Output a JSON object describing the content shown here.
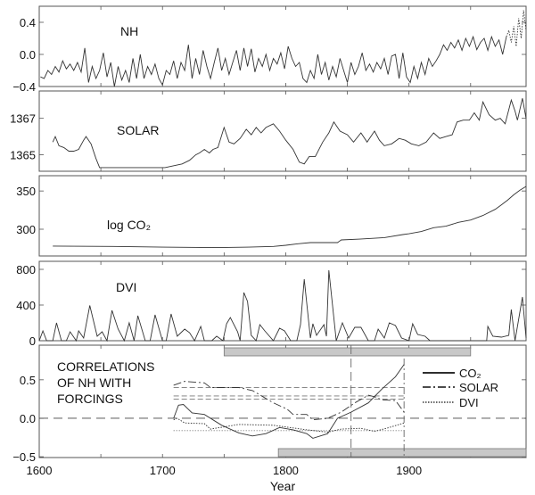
{
  "chart_data": [
    {
      "type": "line",
      "panel_label": "NH",
      "ylim": [
        -0.4,
        0.6
      ],
      "yticks": [
        0.4,
        0.0,
        -0.4
      ],
      "ytick_labels": [
        "0.4",
        "0.0",
        "−0.4"
      ],
      "series": [
        {
          "name": "NH",
          "style": "solid",
          "x_start": 1601,
          "x_step": 3,
          "values": [
            -0.28,
            -0.3,
            -0.2,
            -0.25,
            -0.15,
            -0.22,
            -0.08,
            -0.18,
            -0.12,
            -0.2,
            -0.1,
            -0.22,
            0.08,
            -0.35,
            -0.15,
            -0.3,
            -0.2,
            0.02,
            -0.28,
            -0.1,
            -0.4,
            -0.15,
            -0.32,
            -0.2,
            -0.35,
            -0.05,
            -0.3,
            0.0,
            -0.3,
            -0.15,
            -0.25,
            -0.12,
            -0.3,
            -0.38,
            -0.2,
            -0.25,
            -0.08,
            -0.3,
            -0.1,
            -0.2,
            0.12,
            -0.3,
            -0.05,
            -0.25,
            0.05,
            -0.15,
            -0.3,
            -0.1,
            0.08,
            -0.2,
            -0.05,
            -0.25,
            -0.1,
            0.05,
            -0.2,
            0.08,
            -0.15,
            0.07,
            -0.22,
            -0.05,
            -0.15,
            0.0,
            -0.2,
            -0.05,
            -0.12,
            0.02,
            -0.18,
            0.1,
            -0.05,
            -0.15,
            -0.1,
            -0.3,
            -0.35,
            -0.2,
            -0.3,
            0.0,
            -0.25,
            -0.1,
            -0.32,
            -0.15,
            -0.28,
            -0.05,
            -0.2,
            -0.35,
            -0.1,
            -0.25,
            -0.15,
            0.02,
            -0.2,
            -0.12,
            -0.22,
            -0.1,
            -0.18,
            -0.05,
            -0.25,
            -0.02,
            0.0,
            -0.3,
            0.02,
            -0.28,
            -0.35,
            -0.15,
            -0.3,
            -0.1,
            -0.25,
            -0.05,
            -0.15,
            -0.08,
            0.0,
            0.12,
            0.05,
            0.15,
            0.08,
            0.18,
            0.05,
            0.2,
            0.1,
            0.22,
            0.06,
            0.15,
            0.2,
            0.05,
            0.22,
            0.1,
            0.18,
            0.0,
            0.22
          ]
        },
        {
          "name": "NH (instrumental)",
          "style": "dotted",
          "x": [
            1979,
            1981,
            1983,
            1985,
            1987,
            1989,
            1991,
            1993,
            1995
          ],
          "values": [
            0.22,
            0.3,
            0.15,
            0.35,
            0.1,
            0.45,
            0.2,
            0.55,
            0.3
          ]
        }
      ]
    },
    {
      "type": "line",
      "panel_label": "SOLAR",
      "ylim": [
        1364.1,
        1368.5
      ],
      "yticks": [
        1367,
        1365
      ],
      "ytick_labels": [
        "1367",
        "1365"
      ],
      "series": [
        {
          "name": "SOLAR",
          "style": "solid",
          "x": [
            1611,
            1613,
            1616,
            1620,
            1624,
            1628,
            1632,
            1636,
            1638,
            1642,
            1646,
            1649,
            1660,
            1680,
            1702,
            1716,
            1722,
            1727,
            1730,
            1734,
            1738,
            1741,
            1745,
            1750,
            1754,
            1758,
            1763,
            1768,
            1772,
            1776,
            1780,
            1784,
            1790,
            1795,
            1800,
            1806,
            1811,
            1815,
            1819,
            1824,
            1830,
            1835,
            1839,
            1844,
            1850,
            1855,
            1861,
            1866,
            1872,
            1876,
            1880,
            1886,
            1892,
            1897,
            1902,
            1908,
            1914,
            1920,
            1925,
            1930,
            1935,
            1939,
            1944,
            1949,
            1953,
            1957,
            1960,
            1965,
            1970,
            1974,
            1978,
            1983,
            1986,
            1988,
            1992,
            1995
          ],
          "values": [
            1365.7,
            1366.0,
            1365.5,
            1365.4,
            1365.2,
            1365.2,
            1365.3,
            1365.8,
            1366.0,
            1365.6,
            1364.8,
            1364.3,
            1364.3,
            1364.3,
            1364.3,
            1364.5,
            1364.7,
            1365.0,
            1365.1,
            1365.3,
            1365.1,
            1365.3,
            1365.4,
            1366.5,
            1365.7,
            1365.6,
            1365.9,
            1366.4,
            1366.1,
            1366.5,
            1366.2,
            1366.5,
            1366.7,
            1366.3,
            1365.8,
            1365.3,
            1364.6,
            1364.5,
            1364.9,
            1364.9,
            1365.7,
            1366.2,
            1366.8,
            1366.3,
            1366.1,
            1365.7,
            1366.2,
            1365.7,
            1366.3,
            1365.8,
            1365.5,
            1365.6,
            1365.9,
            1365.8,
            1365.6,
            1365.5,
            1365.7,
            1366.2,
            1365.9,
            1366.0,
            1366.1,
            1366.8,
            1366.9,
            1366.9,
            1367.3,
            1366.9,
            1367.9,
            1367.2,
            1366.9,
            1367.0,
            1366.7,
            1368.0,
            1367.4,
            1366.9,
            1368.1,
            1367.0
          ]
        }
      ]
    },
    {
      "type": "line",
      "panel_label": "log CO₂",
      "ylim": [
        265,
        370
      ],
      "yticks": [
        350,
        300
      ],
      "ytick_labels": [
        "350",
        "300"
      ],
      "series": [
        {
          "name": "log CO2",
          "style": "solid",
          "x": [
            1611,
            1660,
            1700,
            1740,
            1770,
            1790,
            1800,
            1810,
            1820,
            1842,
            1845,
            1860,
            1880,
            1895,
            1900,
            1910,
            1920,
            1930,
            1940,
            1950,
            1960,
            1970,
            1975,
            1980,
            1985,
            1990,
            1995
          ],
          "values": [
            278,
            277.5,
            276.5,
            276,
            276.5,
            277.5,
            279,
            281,
            282.5,
            282.5,
            286,
            287,
            289,
            293,
            294,
            297,
            302,
            304,
            309,
            312,
            318,
            326,
            332,
            338,
            345,
            351,
            356
          ]
        }
      ]
    },
    {
      "type": "line",
      "panel_label": "DVI",
      "ylim": [
        0,
        890
      ],
      "yticks": [
        800,
        400,
        0
      ],
      "ytick_labels": [
        "800",
        "400",
        "0"
      ],
      "series": [
        {
          "name": "DVI",
          "style": "solid",
          "x": [
            1600,
            1603,
            1606,
            1611,
            1614,
            1618,
            1622,
            1625,
            1630,
            1632,
            1636,
            1641,
            1647,
            1651,
            1655,
            1659,
            1664,
            1669,
            1673,
            1677,
            1680,
            1686,
            1690,
            1694,
            1700,
            1703,
            1707,
            1712,
            1718,
            1722,
            1726,
            1731,
            1734,
            1740,
            1744,
            1749,
            1752,
            1755,
            1761,
            1763,
            1766,
            1769,
            1772,
            1776,
            1779,
            1783,
            1790,
            1795,
            1799,
            1804,
            1809,
            1812,
            1815,
            1820,
            1822,
            1825,
            1831,
            1833,
            1835,
            1841,
            1846,
            1851,
            1856,
            1861,
            1867,
            1872,
            1875,
            1880,
            1884,
            1889,
            1894,
            1900,
            1903,
            1907,
            1913,
            1917,
            1963,
            1964,
            1968,
            1975,
            1981,
            1983,
            1986,
            1992,
            1995
          ],
          "values": [
            0,
            110,
            0,
            0,
            200,
            0,
            0,
            100,
            0,
            110,
            30,
            395,
            50,
            100,
            0,
            340,
            130,
            0,
            200,
            0,
            280,
            0,
            0,
            290,
            0,
            0,
            300,
            50,
            130,
            90,
            0,
            160,
            0,
            0,
            50,
            0,
            190,
            260,
            100,
            0,
            540,
            440,
            60,
            0,
            180,
            110,
            0,
            140,
            110,
            0,
            0,
            180,
            690,
            30,
            190,
            60,
            180,
            50,
            790,
            0,
            200,
            30,
            150,
            150,
            0,
            0,
            130,
            30,
            200,
            170,
            30,
            0,
            190,
            70,
            50,
            0,
            0,
            160,
            50,
            40,
            60,
            350,
            0,
            490,
            30
          ]
        }
      ]
    },
    {
      "type": "line",
      "title": "CORRELATIONS OF NH WITH FORCINGS",
      "title_lines": [
        "CORRELATIONS",
        "OF NH WITH",
        "FORCINGS"
      ],
      "xlabel": "Year",
      "xlim": [
        1600,
        1995
      ],
      "xticks": [
        1600,
        1700,
        1800,
        1900
      ],
      "xtick_labels": [
        "1600",
        "1700",
        "1800",
        "1900"
      ],
      "ylim": [
        -0.51,
        0.95
      ],
      "yticks": [
        0.5,
        0.0,
        -0.5
      ],
      "ytick_labels": [
        "0.5",
        "0.0",
        "−0.5"
      ],
      "legend": {
        "placement": "top-right",
        "entries": [
          {
            "label": "CO₂",
            "style": "solid"
          },
          {
            "label": "SOLAR",
            "style": "dash-dot"
          },
          {
            "label": "DVI",
            "style": "dotted"
          }
        ]
      },
      "series": [
        {
          "name": "CO2",
          "style": "solid",
          "x": [
            1709,
            1713,
            1717,
            1724,
            1734,
            1748,
            1762,
            1773,
            1784,
            1795,
            1806,
            1817,
            1822,
            1834,
            1842,
            1853,
            1867,
            1878,
            1889,
            1896
          ],
          "values": [
            0.0,
            0.17,
            0.18,
            0.07,
            0.05,
            -0.09,
            -0.19,
            -0.23,
            -0.2,
            -0.12,
            -0.15,
            -0.2,
            -0.26,
            -0.2,
            0.0,
            0.08,
            0.2,
            0.38,
            0.54,
            0.7
          ]
        },
        {
          "name": "SOLAR",
          "style": "dash-dot",
          "x": [
            1709,
            1718,
            1734,
            1739,
            1762,
            1773,
            1790,
            1801,
            1806,
            1817,
            1822,
            1834,
            1845,
            1856,
            1867,
            1872,
            1878,
            1889,
            1896
          ],
          "values": [
            0.43,
            0.48,
            0.46,
            0.4,
            0.4,
            0.36,
            0.2,
            0.12,
            0.05,
            0.05,
            -0.02,
            0.0,
            0.08,
            0.2,
            0.3,
            0.28,
            0.24,
            0.23,
            0.08
          ]
        },
        {
          "name": "DVI",
          "style": "dotted",
          "x": [
            1709,
            1712,
            1718,
            1734,
            1739,
            1762,
            1790,
            1817,
            1834,
            1845,
            1861,
            1872,
            1884,
            1896
          ],
          "values": [
            -0.02,
            0.0,
            -0.06,
            -0.07,
            -0.14,
            -0.08,
            -0.09,
            -0.15,
            -0.18,
            -0.14,
            -0.13,
            -0.17,
            -0.12,
            -0.06
          ]
        }
      ],
      "significance_levels": {
        "x_range": [
          1709,
          1896
        ],
        "dashed": [
          0.4,
          0.29,
          0.25
        ],
        "dotted": [
          -0.16
        ]
      },
      "vertical_markers": {
        "dashed": 1853,
        "dash_dot": 1896
      },
      "period_bars": [
        {
          "from": 1750,
          "to": 1950,
          "position": "top"
        },
        {
          "from": 1794,
          "to": 1995,
          "position": "bottom"
        }
      ]
    }
  ]
}
